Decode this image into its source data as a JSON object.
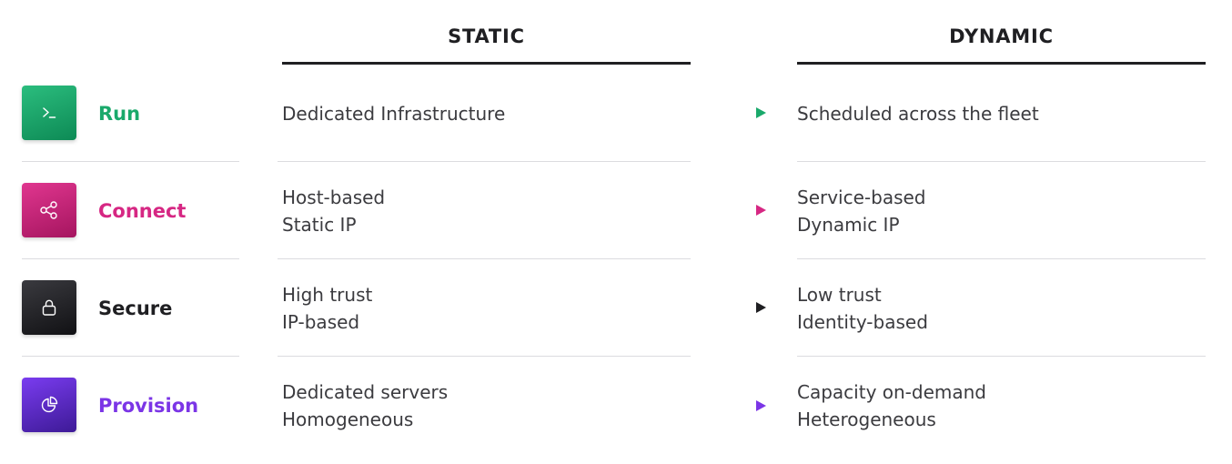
{
  "columns": {
    "static": "STATIC",
    "dynamic": "DYNAMIC"
  },
  "rows": [
    {
      "label": "Run",
      "icon": "terminal-icon",
      "color": "#1aa96b",
      "tile_gradient": [
        "#2bbd7e",
        "#0d8a55"
      ],
      "static": [
        "Dedicated Infrastructure"
      ],
      "dynamic": [
        "Scheduled across the fleet"
      ]
    },
    {
      "label": "Connect",
      "icon": "share-nodes-icon",
      "color": "#d62783",
      "tile_gradient": [
        "#e0368f",
        "#a5155f"
      ],
      "static": [
        "Host-based",
        "Static IP"
      ],
      "dynamic": [
        "Service-based",
        "Dynamic IP"
      ]
    },
    {
      "label": "Secure",
      "icon": "lock-icon",
      "color": "#1f1f22",
      "tile_gradient": [
        "#3a3a3f",
        "#111114"
      ],
      "static": [
        "High trust",
        "IP-based"
      ],
      "dynamic": [
        "Low trust",
        "Identity-based"
      ]
    },
    {
      "label": "Provision",
      "icon": "pie-chart-icon",
      "color": "#7b35e6",
      "tile_gradient": [
        "#7a3cf0",
        "#3d1a96"
      ],
      "static": [
        "Dedicated servers",
        "Homogeneous"
      ],
      "dynamic": [
        "Capacity on-demand",
        "Heterogeneous"
      ]
    }
  ]
}
